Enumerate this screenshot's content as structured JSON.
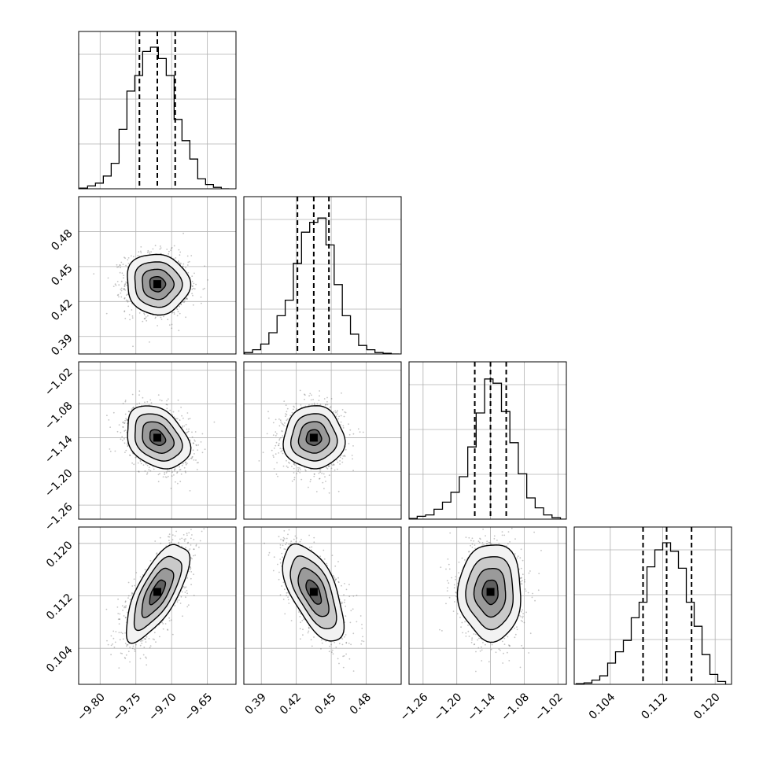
{
  "chart_data": {
    "type": "corner",
    "title": "",
    "parameters": [
      {
        "label": "",
        "range": [
          -9.83,
          -9.61
        ],
        "ticks": [
          -9.8,
          -9.75,
          -9.7,
          -9.65
        ],
        "tick_labels": [
          "−9.80",
          "−9.75",
          "−9.70",
          "−9.65"
        ],
        "quantiles": [
          -9.745,
          -9.72,
          -9.695
        ],
        "center": -9.72,
        "sigma": 0.022,
        "hist_x": [
          -9.823,
          -9.812,
          -9.801,
          -9.79,
          -9.779,
          -9.768,
          -9.757,
          -9.746,
          -9.735,
          -9.724,
          -9.713,
          -9.702,
          -9.691,
          -9.68,
          -9.669,
          -9.658,
          -9.647,
          -9.636,
          -9.625
        ],
        "hist_y": [
          0.005,
          0.02,
          0.04,
          0.09,
          0.18,
          0.42,
          0.69,
          0.8,
          0.97,
          1.0,
          0.92,
          0.8,
          0.49,
          0.34,
          0.21,
          0.07,
          0.03,
          0.01,
          0.0
        ]
      },
      {
        "label": "",
        "range": [
          0.375,
          0.51
        ],
        "ticks": [
          0.39,
          0.42,
          0.45,
          0.48
        ],
        "tick_labels": [
          "0.39",
          "0.42",
          "0.45",
          "0.48"
        ],
        "quantiles": [
          0.421,
          0.435,
          0.448
        ],
        "center": 0.435,
        "sigma": 0.013,
        "hist_x": [
          0.379,
          0.386,
          0.393,
          0.4,
          0.407,
          0.414,
          0.421,
          0.428,
          0.435,
          0.442,
          0.449,
          0.456,
          0.463,
          0.47,
          0.477,
          0.484,
          0.491,
          0.498,
          0.505
        ],
        "hist_y": [
          0.01,
          0.03,
          0.07,
          0.15,
          0.27,
          0.38,
          0.64,
          0.86,
          0.93,
          0.96,
          0.77,
          0.49,
          0.27,
          0.14,
          0.06,
          0.03,
          0.01,
          0.005,
          0.0
        ]
      },
      {
        "label": "",
        "range": [
          -1.285,
          -1.005
        ],
        "ticks": [
          -1.26,
          -1.2,
          -1.14,
          -1.08,
          -1.02
        ],
        "tick_labels": [
          "−1.26",
          "−1.20",
          "−1.14",
          "−1.08",
          "−1.02"
        ],
        "quantiles": [
          -1.168,
          -1.14,
          -1.112
        ],
        "center": -1.14,
        "sigma": 0.028,
        "hist_x": [
          -1.278,
          -1.263,
          -1.248,
          -1.233,
          -1.218,
          -1.203,
          -1.188,
          -1.173,
          -1.158,
          -1.143,
          -1.128,
          -1.113,
          -1.098,
          -1.083,
          -1.068,
          -1.053,
          -1.038,
          -1.023,
          -1.008
        ],
        "hist_y": [
          0.005,
          0.02,
          0.03,
          0.07,
          0.12,
          0.19,
          0.3,
          0.51,
          0.75,
          0.99,
          0.96,
          0.76,
          0.54,
          0.32,
          0.15,
          0.08,
          0.03,
          0.01,
          0.0
        ]
      },
      {
        "label": "",
        "range": [
          0.0985,
          0.1225
        ],
        "ticks": [
          0.104,
          0.112,
          0.12
        ],
        "tick_labels": [
          "0.104",
          "0.112",
          "0.120"
        ],
        "quantiles": [
          0.109,
          0.1126,
          0.1164
        ],
        "center": 0.1126,
        "sigma": 0.0037,
        "hist_x": [
          0.0994,
          0.1006,
          0.1018,
          0.103,
          0.1042,
          0.1054,
          0.1066,
          0.1078,
          0.109,
          0.1102,
          0.1114,
          0.1126,
          0.1138,
          0.115,
          0.1162,
          0.1174,
          0.1186,
          0.1198,
          0.121
        ],
        "hist_y": [
          0.005,
          0.01,
          0.03,
          0.06,
          0.15,
          0.23,
          0.31,
          0.47,
          0.58,
          0.83,
          0.95,
          1.0,
          0.94,
          0.82,
          0.58,
          0.41,
          0.21,
          0.07,
          0.02
        ]
      }
    ],
    "correlations": [
      {
        "pair": [
          1,
          0
        ],
        "rho": -0.05
      },
      {
        "pair": [
          2,
          0
        ],
        "rho": -0.3
      },
      {
        "pair": [
          2,
          1
        ],
        "rho": 0.0
      },
      {
        "pair": [
          3,
          0
        ],
        "rho": 0.7
      },
      {
        "pair": [
          3,
          1
        ],
        "rho": -0.6
      },
      {
        "pair": [
          3,
          2
        ],
        "rho": 0.0
      }
    ],
    "contour_levels_sigma": [
      0.5,
      1.0,
      1.5,
      2.0
    ],
    "grid": true,
    "legend": "none",
    "colors": {
      "line": "#000000",
      "grid": "#b0b0b0",
      "points": "#555555",
      "frame": "#000000"
    }
  }
}
